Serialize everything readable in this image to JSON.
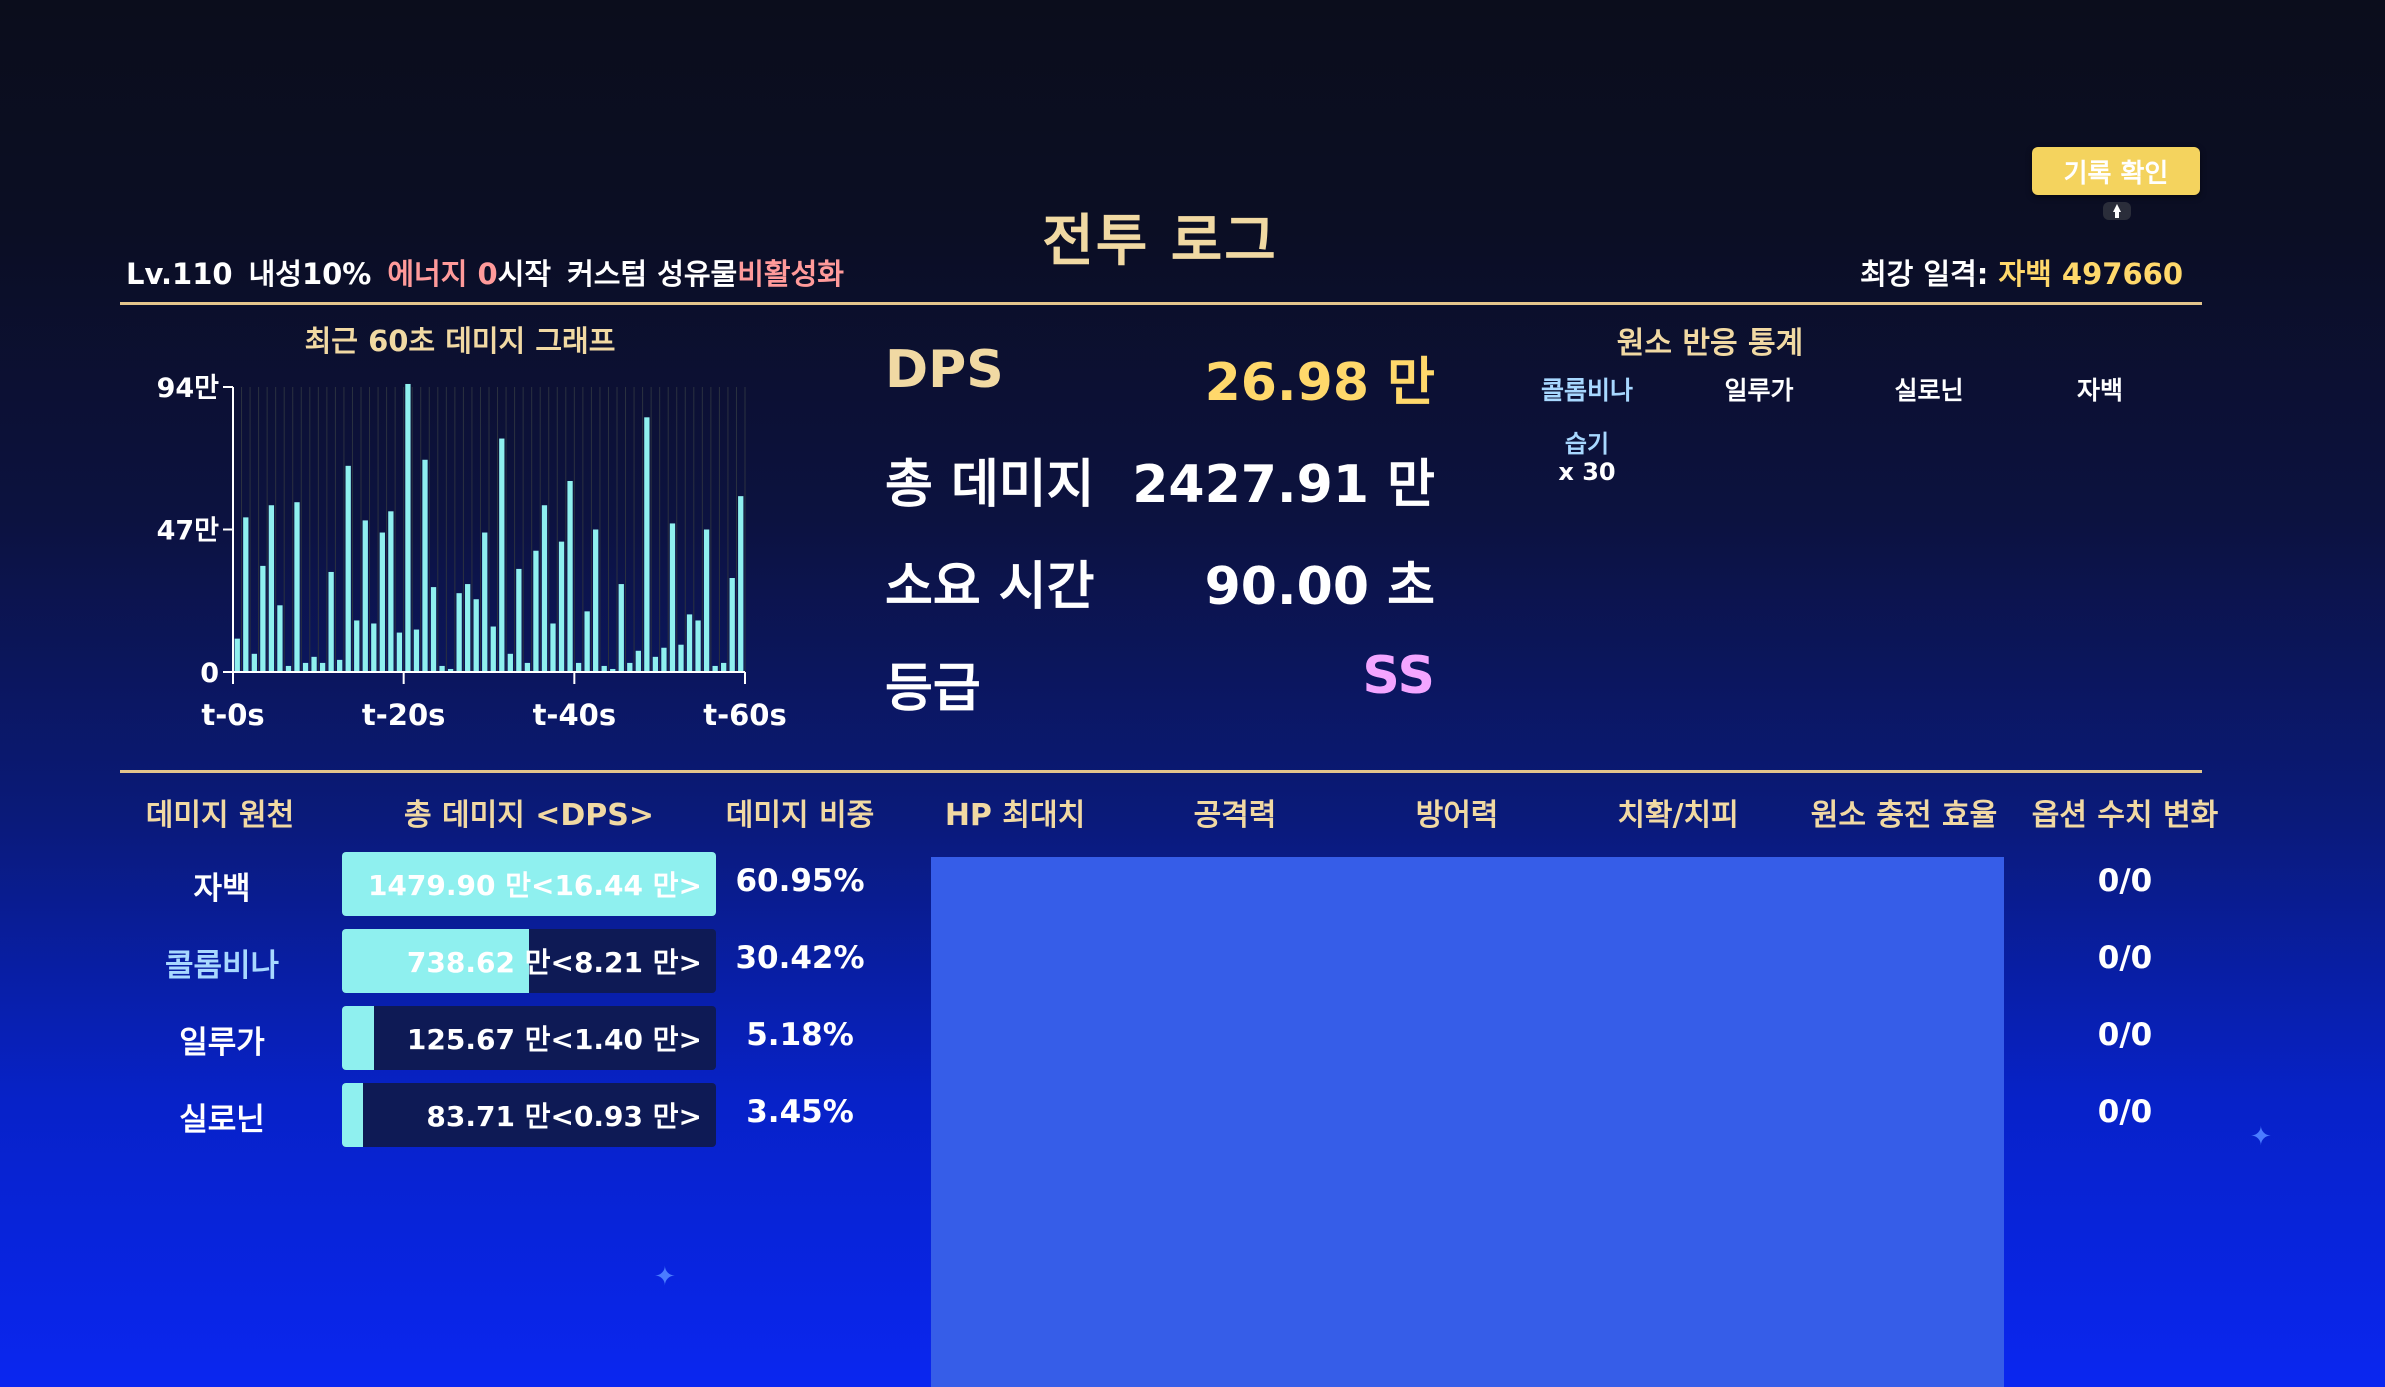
{
  "header": {
    "title": "전투 로그",
    "record_button": "기록 확인",
    "info": {
      "level": "Lv.110",
      "toughness": "내성10%",
      "energy": "에너지 0",
      "start": "시작",
      "custom": "커스텀 성유물",
      "disabled": "비활성화"
    },
    "best_label": "최강 일격: ",
    "best_value": "자백 497660"
  },
  "chart_data": {
    "type": "bar",
    "title": "최근 60초 데미지 그래프",
    "ytick_labels": [
      "94만",
      "47만",
      "0"
    ],
    "xtick_labels": [
      "t-0s",
      "t-20s",
      "t-40s",
      "t-60s"
    ],
    "ylim": [
      0,
      940000
    ],
    "values": [
      110000,
      510000,
      60000,
      350000,
      550000,
      220000,
      20000,
      560000,
      30000,
      50000,
      30000,
      330000,
      40000,
      680000,
      170000,
      500000,
      160000,
      460000,
      530000,
      130000,
      950000,
      140000,
      700000,
      280000,
      20000,
      10000,
      260000,
      290000,
      240000,
      460000,
      150000,
      770000,
      60000,
      340000,
      30000,
      400000,
      550000,
      160000,
      430000,
      630000,
      30000,
      200000,
      470000,
      20000,
      10000,
      290000,
      30000,
      70000,
      840000,
      50000,
      80000,
      490000,
      90000,
      190000,
      170000,
      470000,
      20000,
      30000,
      310000,
      580000
    ]
  },
  "stats": {
    "dps_label": "DPS",
    "dps_value": "26.98 만",
    "total_label": "총 데미지",
    "total_value": "2427.91 만",
    "time_label": "소요 시간",
    "time_value": "90.00 초",
    "grade_label": "등급",
    "grade_value": "SS"
  },
  "elements": {
    "title": "원소 반응 통계",
    "headers": [
      {
        "name": "콜롬비나",
        "color": "#a8d8ff"
      },
      {
        "name": "일루가",
        "color": "#ffffff"
      },
      {
        "name": "실로닌",
        "color": "#ffffff"
      },
      {
        "name": "자백",
        "color": "#ffffff"
      }
    ],
    "reaction_name": "습기",
    "reaction_count": "x 30",
    "reaction_color": "#a8d8ff"
  },
  "table": {
    "headers": [
      "데미지 원천",
      "총 데미지 <DPS>",
      "데미지 비중",
      "HP 최대치",
      "공격력",
      "방어력",
      "치확/치피",
      "원소 충전 효율",
      "옵션 수치 변화"
    ],
    "rows": [
      {
        "name": "자백",
        "name_color": "#ffffff",
        "damage": "1479.90 만<16.44 만>",
        "fill": 1.0,
        "pct": "60.95%",
        "opt": "0/0"
      },
      {
        "name": "콜롬비나",
        "name_color": "#a8d8ff",
        "damage": "738.62 만<8.21 만>",
        "fill": 0.5,
        "pct": "30.42%",
        "opt": "0/0"
      },
      {
        "name": "일루가",
        "name_color": "#ffffff",
        "damage": "125.67 만<1.40 만>",
        "fill": 0.085,
        "pct": "5.18%",
        "opt": "0/0"
      },
      {
        "name": "실로닌",
        "name_color": "#ffffff",
        "damage": "83.71 만<0.93 만>",
        "fill": 0.057,
        "pct": "3.45%",
        "opt": "0/0"
      }
    ]
  }
}
